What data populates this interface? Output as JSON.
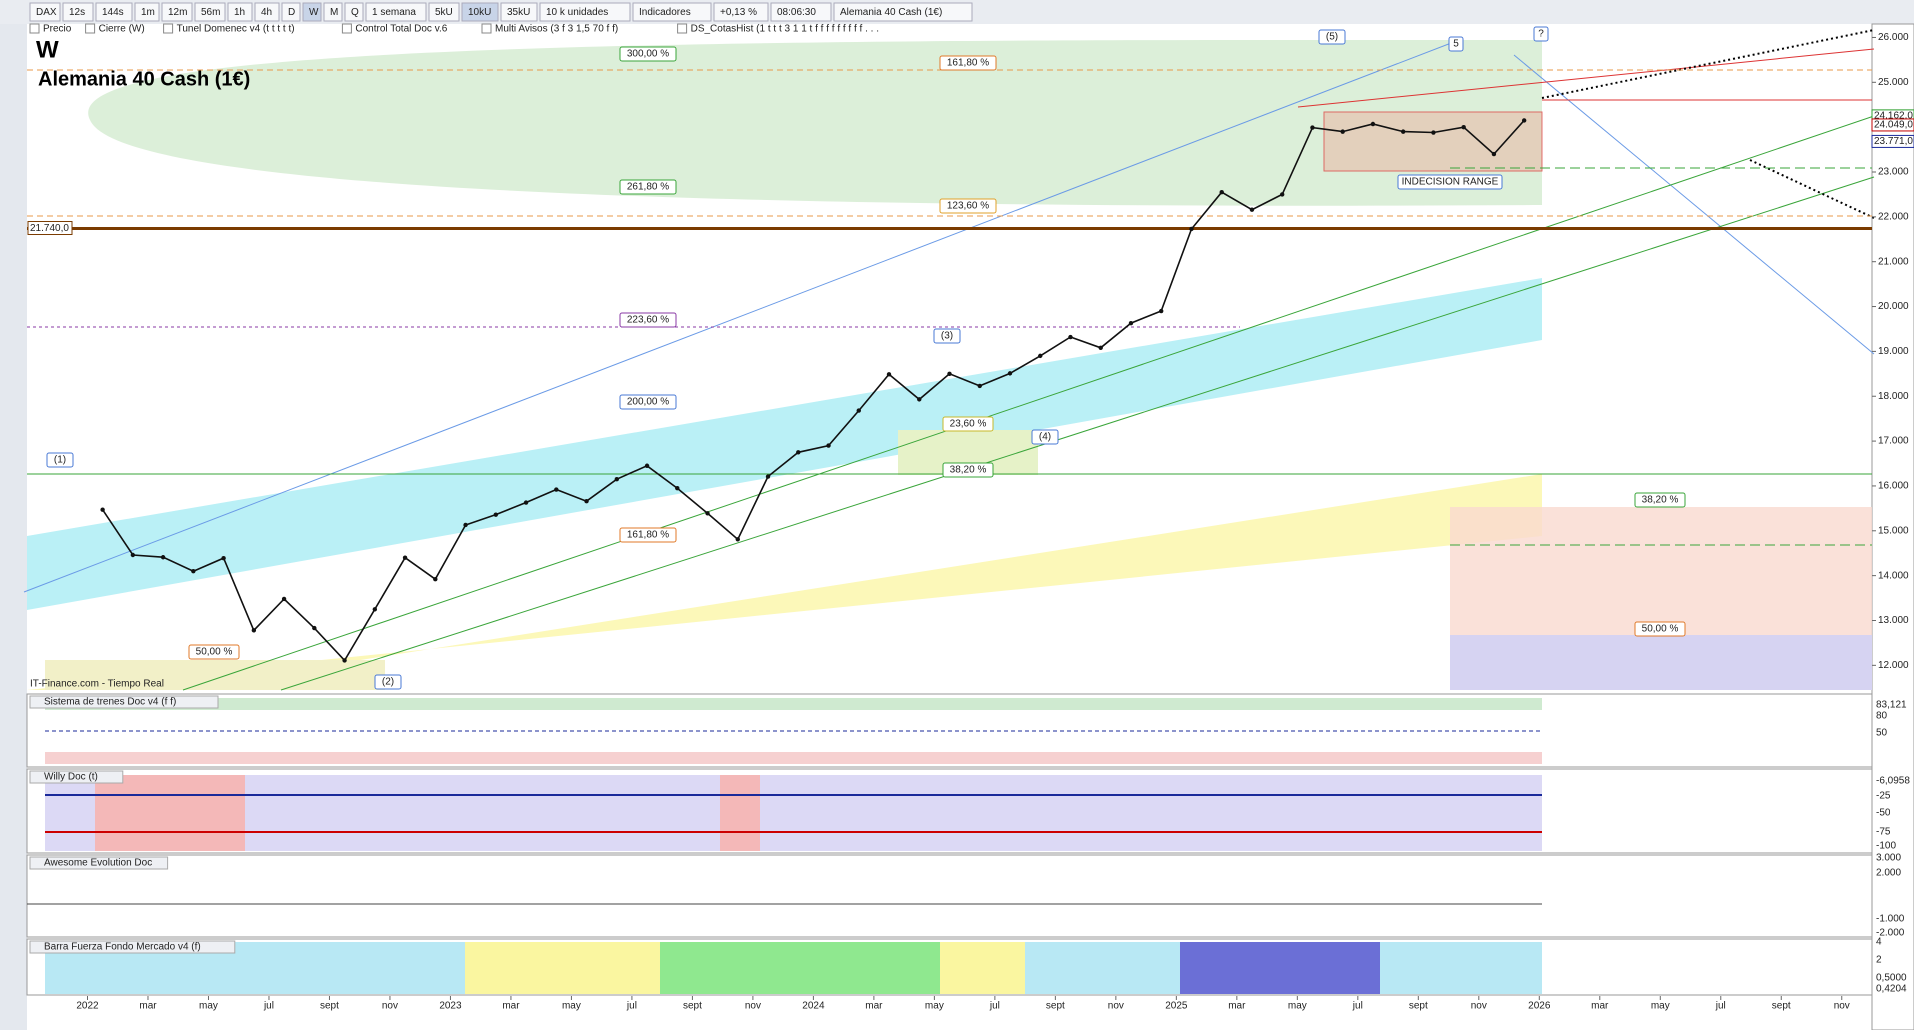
{
  "toolbar": {
    "items": [
      "DAX",
      "12s",
      "144s",
      "1m",
      "12m",
      "56m",
      "1h",
      "4h",
      "D",
      "W",
      "M",
      "Q",
      "1 semana",
      "5kU",
      "10kU",
      "35kU",
      "10 k unidades",
      "Indicadores",
      "+0,13 %",
      "08:06:30",
      "Alemania 40 Cash (1€)"
    ]
  },
  "indicator_bar": {
    "items": [
      "Precio",
      "Cierre (W)",
      "Tunel Domenec v4 (t t t t t)",
      "Control Total Doc v.6",
      "Multi Avisos (3 f 3 1,5 70 f f)",
      "DS_CotasHist (1 t t t 3 1 1 t f f f f f f f f f . . ."
    ]
  },
  "chart_data": {
    "type": "line",
    "title": "W",
    "subtitle": "Alemania 40 Cash (1€)",
    "source": "IT-Finance.com - Tiempo Real",
    "x": [
      "2022-01",
      "2022-02",
      "2022-03",
      "2022-04",
      "2022-05",
      "2022-06",
      "2022-07",
      "2022-08",
      "2022-09",
      "2022-10",
      "2022-11",
      "2022-12",
      "2023-01",
      "2023-02",
      "2023-03",
      "2023-04",
      "2023-05",
      "2023-06",
      "2023-07",
      "2023-08",
      "2023-09",
      "2023-10",
      "2023-11",
      "2023-12",
      "2024-01",
      "2024-02",
      "2024-03",
      "2024-04",
      "2024-05",
      "2024-06",
      "2024-07",
      "2024-08",
      "2024-09",
      "2024-10",
      "2024-11",
      "2024-12",
      "2025-01",
      "2025-02",
      "2025-03",
      "2025-04",
      "2025-05",
      "2025-06",
      "2025-07",
      "2025-08",
      "2025-09",
      "2025-10",
      "2025-11",
      "2025-12"
    ],
    "values": [
      15470,
      14460,
      14410,
      14100,
      14390,
      12780,
      13480,
      12830,
      12110,
      13250,
      14400,
      13920,
      15130,
      15360,
      15630,
      15920,
      15660,
      16150,
      16450,
      15950,
      15390,
      14810,
      16210,
      16750,
      16900,
      17680,
      18490,
      17930,
      18500,
      18230,
      18510,
      18900,
      19320,
      19080,
      19630,
      19900,
      21730,
      22550,
      22160,
      22500,
      23990,
      23900,
      24070,
      23900,
      23880,
      24000,
      23400,
      24150
    ],
    "color": "#111111",
    "ylim": [
      11450,
      26300
    ],
    "yticks": [
      {
        "value": 12000,
        "label": "12.000"
      },
      {
        "value": 13000,
        "label": "13.000"
      },
      {
        "value": 14000,
        "label": "14.000"
      },
      {
        "value": 15000,
        "label": "15.000"
      },
      {
        "value": 16000,
        "label": "16.000"
      },
      {
        "value": 17000,
        "label": "17.000"
      },
      {
        "value": 18000,
        "label": "18.000"
      },
      {
        "value": 19000,
        "label": "19.000"
      },
      {
        "value": 20000,
        "label": "20.000"
      },
      {
        "value": 21000,
        "label": "21.000"
      },
      {
        "value": 22000,
        "label": "22.000"
      },
      {
        "value": 23000,
        "label": "23.000"
      },
      {
        "value": 24000,
        "label": "24.000"
      },
      {
        "value": 25000,
        "label": "25.000"
      },
      {
        "value": 26000,
        "label": "26.000"
      }
    ],
    "xlim": [
      "2021-11",
      "2026-12"
    ],
    "xticks": [
      {
        "value": "2022-01",
        "label": "2022"
      },
      {
        "value": "2022-03",
        "label": "mar"
      },
      {
        "value": "2022-05",
        "label": "may"
      },
      {
        "value": "2022-07",
        "label": "jul"
      },
      {
        "value": "2022-09",
        "label": "sept"
      },
      {
        "value": "2022-11",
        "label": "nov"
      },
      {
        "value": "2023-01",
        "label": "2023"
      },
      {
        "value": "2023-03",
        "label": "mar"
      },
      {
        "value": "2023-05",
        "label": "may"
      },
      {
        "value": "2023-07",
        "label": "jul"
      },
      {
        "value": "2023-09",
        "label": "sept"
      },
      {
        "value": "2023-11",
        "label": "nov"
      },
      {
        "value": "2024-01",
        "label": "2024"
      },
      {
        "value": "2024-03",
        "label": "mar"
      },
      {
        "value": "2024-05",
        "label": "may"
      },
      {
        "value": "2024-07",
        "label": "jul"
      },
      {
        "value": "2024-09",
        "label": "sept"
      },
      {
        "value": "2024-11",
        "label": "nov"
      },
      {
        "value": "2025-01",
        "label": "2025"
      },
      {
        "value": "2025-03",
        "label": "mar"
      },
      {
        "value": "2025-05",
        "label": "may"
      },
      {
        "value": "2025-07",
        "label": "jul"
      },
      {
        "value": "2025-09",
        "label": "sept"
      },
      {
        "value": "2025-11",
        "label": "nov"
      },
      {
        "value": "2026-01",
        "label": "2026"
      },
      {
        "value": "2026-03",
        "label": "mar"
      },
      {
        "value": "2026-05",
        "label": "may"
      },
      {
        "value": "2026-07",
        "label": "jul"
      },
      {
        "value": "2026-09",
        "label": "sept"
      },
      {
        "value": "2026-11",
        "label": "nov"
      }
    ],
    "levels": [
      {
        "value": 21740,
        "label": "21.740,0",
        "color": "#7a3b00"
      }
    ],
    "last_prices": [
      {
        "value": 24162,
        "label": "24.162,0",
        "color": "#2e9e2e"
      },
      {
        "value": 24049,
        "label": "24.049,0",
        "color": "#c00000"
      },
      {
        "value": 23771,
        "label": "23.771,0",
        "color": "#1a2a9a"
      }
    ],
    "annotations": [
      "(1)",
      "(2)",
      "(3)",
      "(4)",
      "(5)",
      "5",
      "?",
      "INDECISION RANGE",
      "300,00 %",
      "161,80 %",
      "261,80 %",
      "123,60 %",
      "223,60 %",
      "200,00 %",
      "23,60 %",
      "38,20 %",
      "161,80 %",
      "50,00 %",
      "38,20 %",
      "50,00 %"
    ],
    "grid": false
  },
  "panels": [
    {
      "title": "Sistema de trenes Doc v4 (f f)",
      "labels": [
        "83,121",
        "80",
        "50"
      ]
    },
    {
      "title": "Willy Doc (t)",
      "labels": [
        "-6,0958",
        "-25",
        "-50",
        "-75",
        "-100"
      ]
    },
    {
      "title": "Awesome Evolution Doc",
      "labels": [
        "3.000",
        "2.000",
        "-1.000",
        "-2.000"
      ]
    },
    {
      "title": "Barra Fuerza Fondo Mercado v4 (f)",
      "labels": [
        "4",
        "2",
        "0,5000",
        "0,4204"
      ]
    }
  ]
}
